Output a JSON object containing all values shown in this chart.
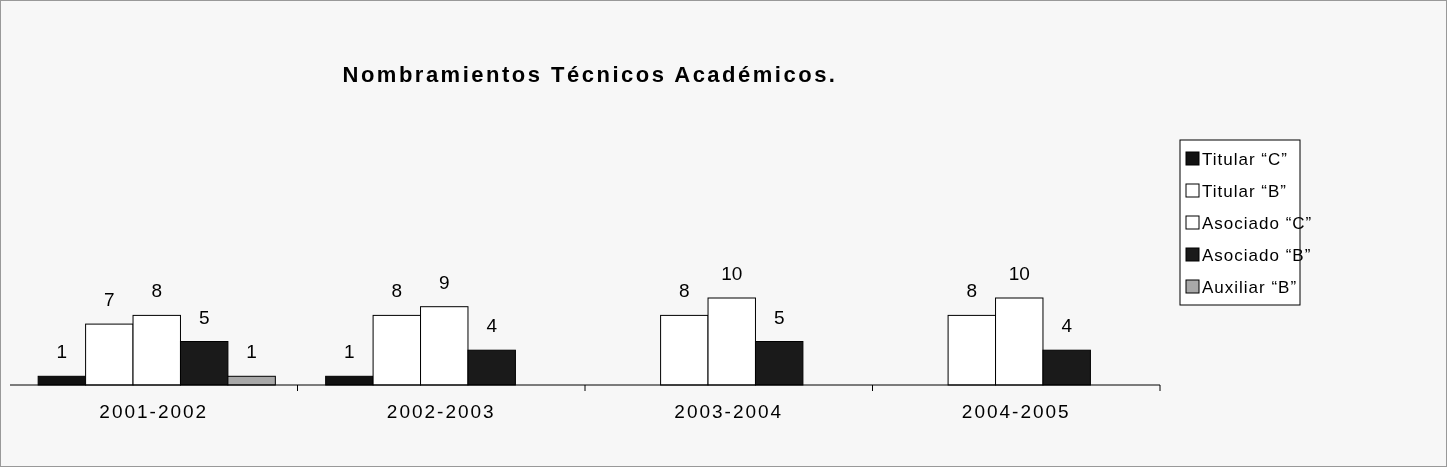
{
  "chart_data": {
    "type": "bar",
    "title": "Nombramientos Técnicos Académicos.",
    "categories": [
      "2001-2002",
      "2002-2003",
      "2003-2004",
      "2004-2005"
    ],
    "series": [
      {
        "name": "Titular “C”",
        "color": "#111111",
        "values": [
          1,
          1,
          null,
          null
        ]
      },
      {
        "name": "Titular “B”",
        "color": "#ffffff",
        "values": [
          7,
          8,
          8,
          8
        ]
      },
      {
        "name": "Asociado “C”",
        "color": "#ffffff",
        "values": [
          8,
          9,
          10,
          10
        ]
      },
      {
        "name": "Asociado “B”",
        "color": "#1a1a1a",
        "values": [
          5,
          4,
          5,
          4
        ]
      },
      {
        "name": "Auxiliar “B”",
        "color": "#a8a8a8",
        "values": [
          1,
          null,
          null,
          null
        ]
      }
    ],
    "data_labels": true,
    "legend": "right",
    "grid": false
  }
}
